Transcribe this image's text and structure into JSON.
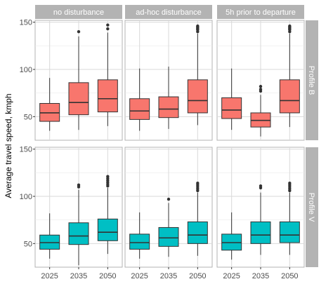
{
  "chart_data": {
    "type": "boxplot",
    "ylabel": "Average travel speed, kmph",
    "xlabel": "",
    "categories": [
      "2025",
      "2035",
      "2050"
    ],
    "columns": [
      "no disturbance",
      "ad-hoc disturbance",
      "5h prior to departure"
    ],
    "rows": [
      "Profile B",
      "Profile V"
    ],
    "ylim": [
      25,
      152
    ],
    "yticks": [
      50,
      100,
      150
    ],
    "grid": true,
    "colors": {
      "Profile B": "#F8766D",
      "Profile V": "#00BFC4"
    },
    "panels": [
      {
        "row": "Profile B",
        "col": "no disturbance",
        "boxes": [
          {
            "x": "2025",
            "min": 35,
            "q1": 45,
            "median": 54,
            "q3": 64,
            "max": 91,
            "outliers": []
          },
          {
            "x": "2035",
            "min": 36,
            "q1": 52,
            "median": 65,
            "q3": 86,
            "max": 135,
            "outliers": [
              140
            ]
          },
          {
            "x": "2050",
            "min": 40,
            "q1": 55,
            "median": 69,
            "q3": 89,
            "max": 139,
            "outliers": [
              143,
              147
            ]
          }
        ]
      },
      {
        "row": "Profile B",
        "col": "ad-hoc disturbance",
        "boxes": [
          {
            "x": "2025",
            "min": 35,
            "q1": 47,
            "median": 56,
            "q3": 69,
            "max": 101,
            "outliers": []
          },
          {
            "x": "2035",
            "min": 37,
            "q1": 49,
            "median": 58,
            "q3": 71,
            "max": 103,
            "outliers": []
          },
          {
            "x": "2050",
            "min": 41,
            "q1": 54,
            "median": 67,
            "q3": 89,
            "max": 138,
            "outliers": [
              140,
              142,
              143,
              144,
              145,
              146
            ]
          }
        ]
      },
      {
        "row": "Profile B",
        "col": "5h prior to departure",
        "boxes": [
          {
            "x": "2025",
            "min": 36,
            "q1": 48,
            "median": 57,
            "q3": 70,
            "max": 101,
            "outliers": []
          },
          {
            "x": "2035",
            "min": 29,
            "q1": 39,
            "median": 46,
            "q3": 54,
            "max": 73,
            "outliers": [
              77,
              79,
              82
            ]
          },
          {
            "x": "2050",
            "min": 39,
            "q1": 54,
            "median": 67,
            "q3": 89,
            "max": 138,
            "outliers": [
              140,
              142,
              143,
              144,
              145,
              146
            ]
          }
        ]
      },
      {
        "row": "Profile V",
        "col": "no disturbance",
        "boxes": [
          {
            "x": "2025",
            "min": 34,
            "q1": 44,
            "median": 51,
            "q3": 59,
            "max": 82,
            "outliers": []
          },
          {
            "x": "2035",
            "min": 27,
            "q1": 49,
            "median": 58,
            "q3": 72,
            "max": 107,
            "outliers": [
              110,
              112
            ]
          },
          {
            "x": "2050",
            "min": 39,
            "q1": 53,
            "median": 62,
            "q3": 76,
            "max": 109,
            "outliers": [
              111,
              113,
              115,
              117,
              119,
              121
            ]
          }
        ]
      },
      {
        "row": "Profile V",
        "col": "ad-hoc disturbance",
        "boxes": [
          {
            "x": "2025",
            "min": 34,
            "q1": 44,
            "median": 51,
            "q3": 60,
            "max": 83,
            "outliers": []
          },
          {
            "x": "2035",
            "min": 36,
            "q1": 47,
            "median": 56,
            "q3": 67,
            "max": 93,
            "outliers": [
              97
            ]
          },
          {
            "x": "2050",
            "min": 37,
            "q1": 50,
            "median": 59,
            "q3": 73,
            "max": 104,
            "outliers": [
              106,
              108,
              110,
              112,
              114
            ]
          }
        ]
      },
      {
        "row": "Profile V",
        "col": "5h prior to departure",
        "boxes": [
          {
            "x": "2025",
            "min": 33,
            "q1": 43,
            "median": 51,
            "q3": 60,
            "max": 83,
            "outliers": []
          },
          {
            "x": "2035",
            "min": 38,
            "q1": 50,
            "median": 59,
            "q3": 73,
            "max": 104,
            "outliers": [
              109,
              111
            ]
          },
          {
            "x": "2050",
            "min": 38,
            "q1": 51,
            "median": 59,
            "q3": 73,
            "max": 104,
            "outliers": [
              106,
              108,
              110,
              112,
              114
            ]
          }
        ]
      }
    ]
  }
}
